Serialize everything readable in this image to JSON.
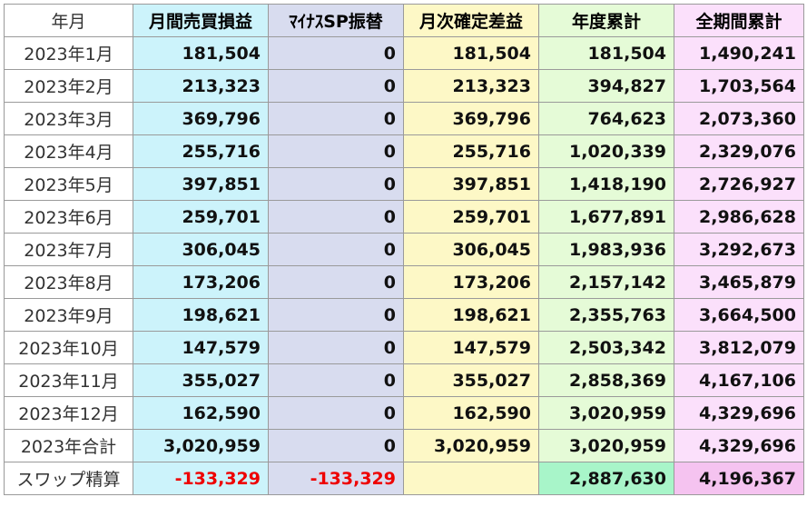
{
  "headers": [
    "年月",
    "月間売買損益",
    "ﾏｲﾅｽSP振替",
    "月次確定差益",
    "年度累計",
    "全期間累計"
  ],
  "rows": [
    [
      "2023年1月",
      "181,504",
      "0",
      "181,504",
      "181,504",
      "1,490,241"
    ],
    [
      "2023年2月",
      "213,323",
      "0",
      "213,323",
      "394,827",
      "1,703,564"
    ],
    [
      "2023年3月",
      "369,796",
      "0",
      "369,796",
      "764,623",
      "2,073,360"
    ],
    [
      "2023年4月",
      "255,716",
      "0",
      "255,716",
      "1,020,339",
      "2,329,076"
    ],
    [
      "2023年5月",
      "397,851",
      "0",
      "397,851",
      "1,418,190",
      "2,726,927"
    ],
    [
      "2023年6月",
      "259,701",
      "0",
      "259,701",
      "1,677,891",
      "2,986,628"
    ],
    [
      "2023年7月",
      "306,045",
      "0",
      "306,045",
      "1,983,936",
      "3,292,673"
    ],
    [
      "2023年8月",
      "173,206",
      "0",
      "173,206",
      "2,157,142",
      "3,465,879"
    ],
    [
      "2023年9月",
      "198,621",
      "0",
      "198,621",
      "2,355,763",
      "3,664,500"
    ],
    [
      "2023年10月",
      "147,579",
      "0",
      "147,579",
      "2,503,342",
      "3,812,079"
    ],
    [
      "2023年11月",
      "355,027",
      "0",
      "355,027",
      "2,858,369",
      "4,167,106"
    ],
    [
      "2023年12月",
      "162,590",
      "0",
      "162,590",
      "3,020,959",
      "4,329,696"
    ]
  ],
  "total_row": [
    "2023年合計",
    "3,020,959",
    "0",
    "3,020,959",
    "3,020,959",
    "4,329,696"
  ],
  "swap_row": [
    "スワップ精算",
    "-133,329",
    "-133,329",
    "",
    "2,887,630",
    "4,196,367"
  ],
  "colors": {
    "col1": "#ccf3fb",
    "col2": "#d8dcef",
    "col3": "#fdf8c6",
    "col4": "#e5fbd7",
    "col5": "#fbe0fb",
    "col4_swap": "#a8f5c9",
    "col5_swap": "#f5c3f0",
    "negative": "#ee0000"
  }
}
